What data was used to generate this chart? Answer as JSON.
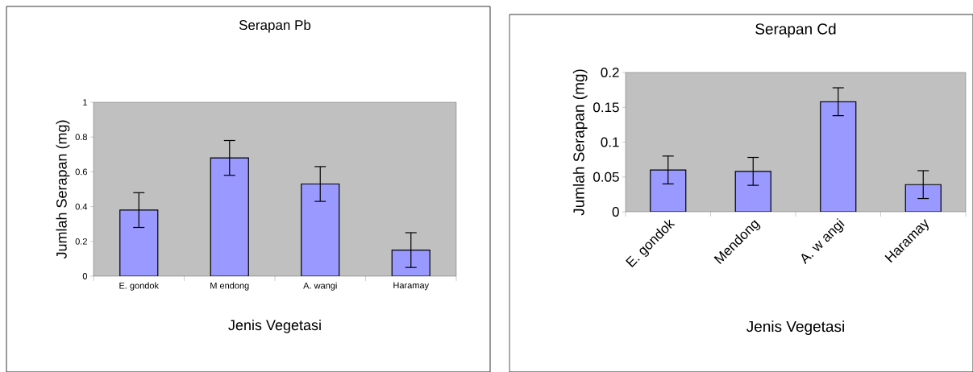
{
  "chart_data": [
    {
      "type": "bar",
      "title": "Serapan Pb",
      "xlabel": "Jenis Vegetasi",
      "ylabel": "Jumlah Serapan (mg)",
      "categories": [
        "E. gondok",
        "M endong",
        "A. wangi",
        "Haramay"
      ],
      "values": [
        0.38,
        0.68,
        0.53,
        0.15
      ],
      "errors": [
        0.1,
        0.1,
        0.1,
        0.1
      ],
      "color": "#9999ff",
      "ylim": [
        0,
        1
      ],
      "yticks": [
        0,
        0.2,
        0.4,
        0.6,
        0.8,
        1
      ]
    },
    {
      "type": "bar",
      "title": "Serapan Cd",
      "xlabel": "Jenis Vegetasi",
      "ylabel": "Jumlah Serapan (mg)",
      "categories": [
        "E. gondok",
        "Mendong",
        "A. w angi",
        "Haramay"
      ],
      "values": [
        0.06,
        0.058,
        0.158,
        0.039
      ],
      "errors": [
        0.02,
        0.02,
        0.02,
        0.02
      ],
      "color": "#9999ff",
      "ylim": [
        0,
        0.2
      ],
      "yticks": [
        0,
        0.05,
        0.1,
        0.15,
        0.2
      ]
    }
  ]
}
